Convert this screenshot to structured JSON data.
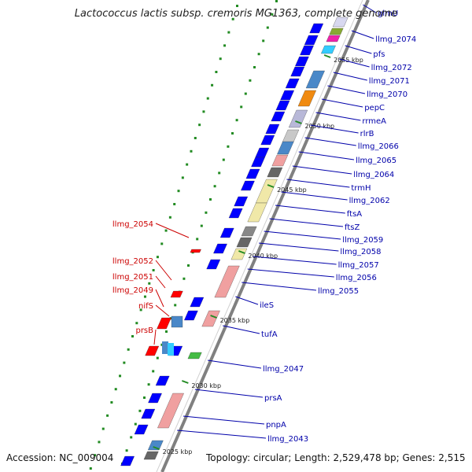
{
  "title": "Lactococcus lactis subsp. cremoris MG1363, complete genome",
  "footer": {
    "accession": "Accession: NC_009004",
    "summary": "Topology: circular; Length: 2,529,478 bp; Genes: 2,515"
  },
  "colors": {
    "forward_gene": "#0000ff",
    "reverse_gene": "#ff0000",
    "right_label": "#0000aa",
    "left_label": "#cc0000",
    "gc_skew_dots": "#228b22",
    "backbone": "#808080"
  },
  "ticks": [
    "2055 kbp",
    "2050 kbp",
    "2045 kbp",
    "2040 kbp",
    "2035 kbp",
    "2030 kbp",
    "2025 kbp"
  ],
  "right_labels": [
    "glmU",
    "llmg_2074",
    "pfs",
    "llmg_2072",
    "llmg_2071",
    "llmg_2070",
    "pepC",
    "rrmeA",
    "rlrB",
    "llmg_2066",
    "llmg_2065",
    "llmg_2064",
    "trmH",
    "llmg_2062",
    "ftsA",
    "ftsZ",
    "llmg_2059",
    "llmg_2058",
    "llmg_2057",
    "llmg_2056",
    "llmg_2055",
    "ileS",
    "tufA",
    "llmg_2047",
    "prsA",
    "pnpA",
    "llmg_2043"
  ],
  "left_labels": [
    "llmg_2054",
    "llmg_2052",
    "llmg_2051",
    "llmg_2049",
    "nifS",
    "prsB"
  ]
}
